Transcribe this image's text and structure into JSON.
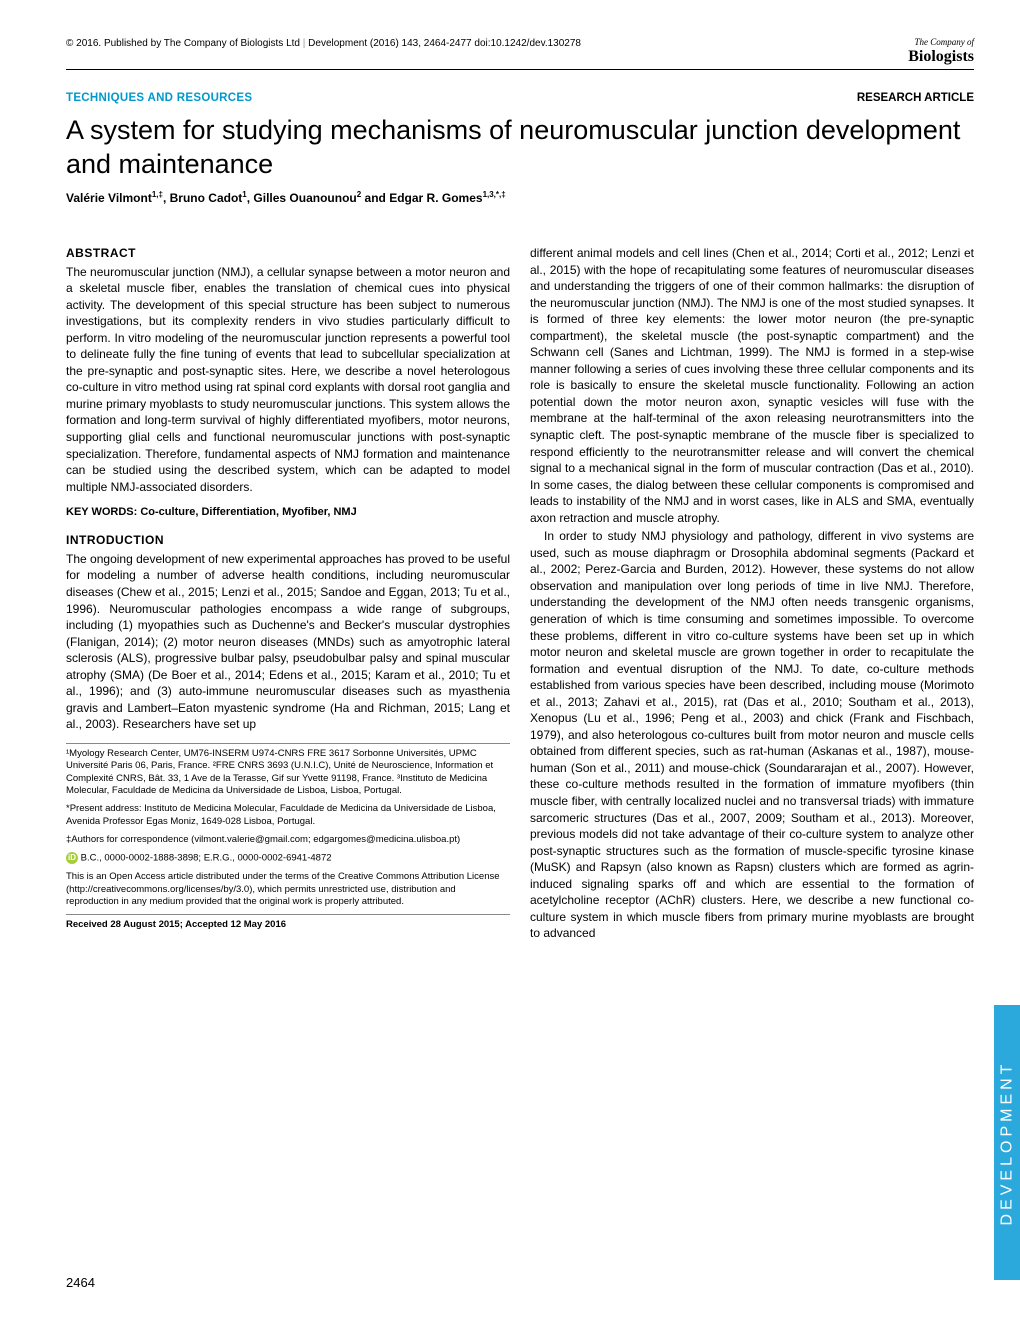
{
  "header": {
    "copyright": "© 2016. Published by The Company of Biologists Ltd",
    "journal": "Development (2016) 143, 2464-2477 doi:10.1242/dev.130278",
    "logo_top": "The Company of",
    "logo_bottom": "Biologists"
  },
  "labels": {
    "section": "TECHNIQUES AND RESOURCES",
    "type": "RESEARCH ARTICLE"
  },
  "title": "A system for studying mechanisms of neuromuscular junction development and maintenance",
  "authors_html": "Valérie Vilmont<sup>1,‡</sup>, Bruno Cadot<sup>1</sup>, Gilles Ouanounou<sup>2</sup> and Edgar R. Gomes<sup>1,3,*,‡</sup>",
  "abstract": {
    "heading": "ABSTRACT",
    "text": "The neuromuscular junction (NMJ), a cellular synapse between a motor neuron and a skeletal muscle fiber, enables the translation of chemical cues into physical activity. The development of this special structure has been subject to numerous investigations, but its complexity renders in vivo studies particularly difficult to perform. In vitro modeling of the neuromuscular junction represents a powerful tool to delineate fully the fine tuning of events that lead to subcellular specialization at the pre-synaptic and post-synaptic sites. Here, we describe a novel heterologous co-culture in vitro method using rat spinal cord explants with dorsal root ganglia and murine primary myoblasts to study neuromuscular junctions. This system allows the formation and long-term survival of highly differentiated myofibers, motor neurons, supporting glial cells and functional neuromuscular junctions with post-synaptic specialization. Therefore, fundamental aspects of NMJ formation and maintenance can be studied using the described system, which can be adapted to model multiple NMJ-associated disorders."
  },
  "keywords": "KEY WORDS: Co-culture, Differentiation, Myofiber, NMJ",
  "intro": {
    "heading": "INTRODUCTION",
    "p1": "The ongoing development of new experimental approaches has proved to be useful for modeling a number of adverse health conditions, including neuromuscular diseases (Chew et al., 2015; Lenzi et al., 2015; Sandoe and Eggan, 2013; Tu et al., 1996). Neuromuscular pathologies encompass a wide range of subgroups, including (1) myopathies such as Duchenne's and Becker's muscular dystrophies (Flanigan, 2014); (2) motor neuron diseases (MNDs) such as amyotrophic lateral sclerosis (ALS), progressive bulbar palsy, pseudobulbar palsy and spinal muscular atrophy (SMA) (De Boer et al., 2014; Edens et al., 2015; Karam et al., 2010; Tu et al., 1996); and (3) auto-immune neuromuscular diseases such as myasthenia gravis and Lambert–Eaton myastenic syndrome (Ha and Richman, 2015; Lang et al., 2003). Researchers have set up"
  },
  "col2": {
    "p1": "different animal models and cell lines (Chen et al., 2014; Corti et al., 2012; Lenzi et al., 2015) with the hope of recapitulating some features of neuromuscular diseases and understanding the triggers of one of their common hallmarks: the disruption of the neuromuscular junction (NMJ). The NMJ is one of the most studied synapses. It is formed of three key elements: the lower motor neuron (the pre-synaptic compartment), the skeletal muscle (the post-synaptic compartment) and the Schwann cell (Sanes and Lichtman, 1999). The NMJ is formed in a step-wise manner following a series of cues involving these three cellular components and its role is basically to ensure the skeletal muscle functionality. Following an action potential down the motor neuron axon, synaptic vesicles will fuse with the membrane at the half-terminal of the axon releasing neurotransmitters into the synaptic cleft. The post-synaptic membrane of the muscle fiber is specialized to respond efficiently to the neurotransmitter release and will convert the chemical signal to a mechanical signal in the form of muscular contraction (Das et al., 2010). In some cases, the dialog between these cellular components is compromised and leads to instability of the NMJ and in worst cases, like in ALS and SMA, eventually axon retraction and muscle atrophy.",
    "p2": "In order to study NMJ physiology and pathology, different in vivo systems are used, such as mouse diaphragm or Drosophila abdominal segments (Packard et al., 2002; Perez-Garcia and Burden, 2012). However, these systems do not allow observation and manipulation over long periods of time in live NMJ. Therefore, understanding the development of the NMJ often needs transgenic organisms, generation of which is time consuming and sometimes impossible. To overcome these problems, different in vitro co-culture systems have been set up in which motor neuron and skeletal muscle are grown together in order to recapitulate the formation and eventual disruption of the NMJ. To date, co-culture methods established from various species have been described, including mouse (Morimoto et al., 2013; Zahavi et al., 2015), rat (Das et al., 2010; Southam et al., 2013), Xenopus (Lu et al., 1996; Peng et al., 2003) and chick (Frank and Fischbach, 1979), and also heterologous co-cultures built from motor neuron and muscle cells obtained from different species, such as rat-human (Askanas et al., 1987), mouse-human (Son et al., 2011) and mouse-chick (Soundararajan et al., 2007). However, these co-culture methods resulted in the formation of immature myofibers (thin muscle fiber, with centrally localized nuclei and no transversal triads) with immature sarcomeric structures (Das et al., 2007, 2009; Southam et al., 2013). Moreover, previous models did not take advantage of their co-culture system to analyze other post-synaptic structures such as the formation of muscle-specific tyrosine kinase (MuSK) and Rapsyn (also known as Rapsn) clusters which are formed as agrin-induced signaling sparks off and which are essential to the formation of acetylcholine receptor (AChR) clusters. Here, we describe a new functional co-culture system in which muscle fibers from primary murine myoblasts are brought to advanced"
  },
  "footnotes": {
    "affil": "¹Myology Research Center, UM76-INSERM U974-CNRS FRE 3617 Sorbonne Universités, UPMC Université Paris 06, Paris, France. ²FRE CNRS 3693 (U.N.I.C), Unité de Neuroscience, Information et Complexité CNRS, Bât. 33, 1 Ave de la Terasse, Gif sur Yvette 91198, France. ³Instituto de Medicina Molecular, Faculdade de Medicina da Universidade de Lisboa, Lisboa, Portugal.",
    "present": "*Present address: Instituto de Medicina Molecular, Faculdade de Medicina da Universidade de Lisboa, Avenida Professor Egas Moniz, 1649-028 Lisboa, Portugal.",
    "correspond": "‡Authors for correspondence (vilmont.valerie@gmail.com; edgargomes@medicina.ulisboa.pt)",
    "orcid": "B.C., 0000-0002-1888-3898; E.R.G., 0000-0002-6941-4872",
    "license": "This is an Open Access article distributed under the terms of the Creative Commons Attribution License (http://creativecommons.org/licenses/by/3.0), which permits unrestricted use, distribution and reproduction in any medium provided that the original work is properly attributed.",
    "received": "Received 28 August 2015; Accepted 12 May 2016"
  },
  "pagenum": "2464",
  "sidetab": "DEVELOPMENT",
  "colors": {
    "accent": "#2ba8dc",
    "section_blue": "#0099cc",
    "orcid_green": "#a6ce39"
  }
}
